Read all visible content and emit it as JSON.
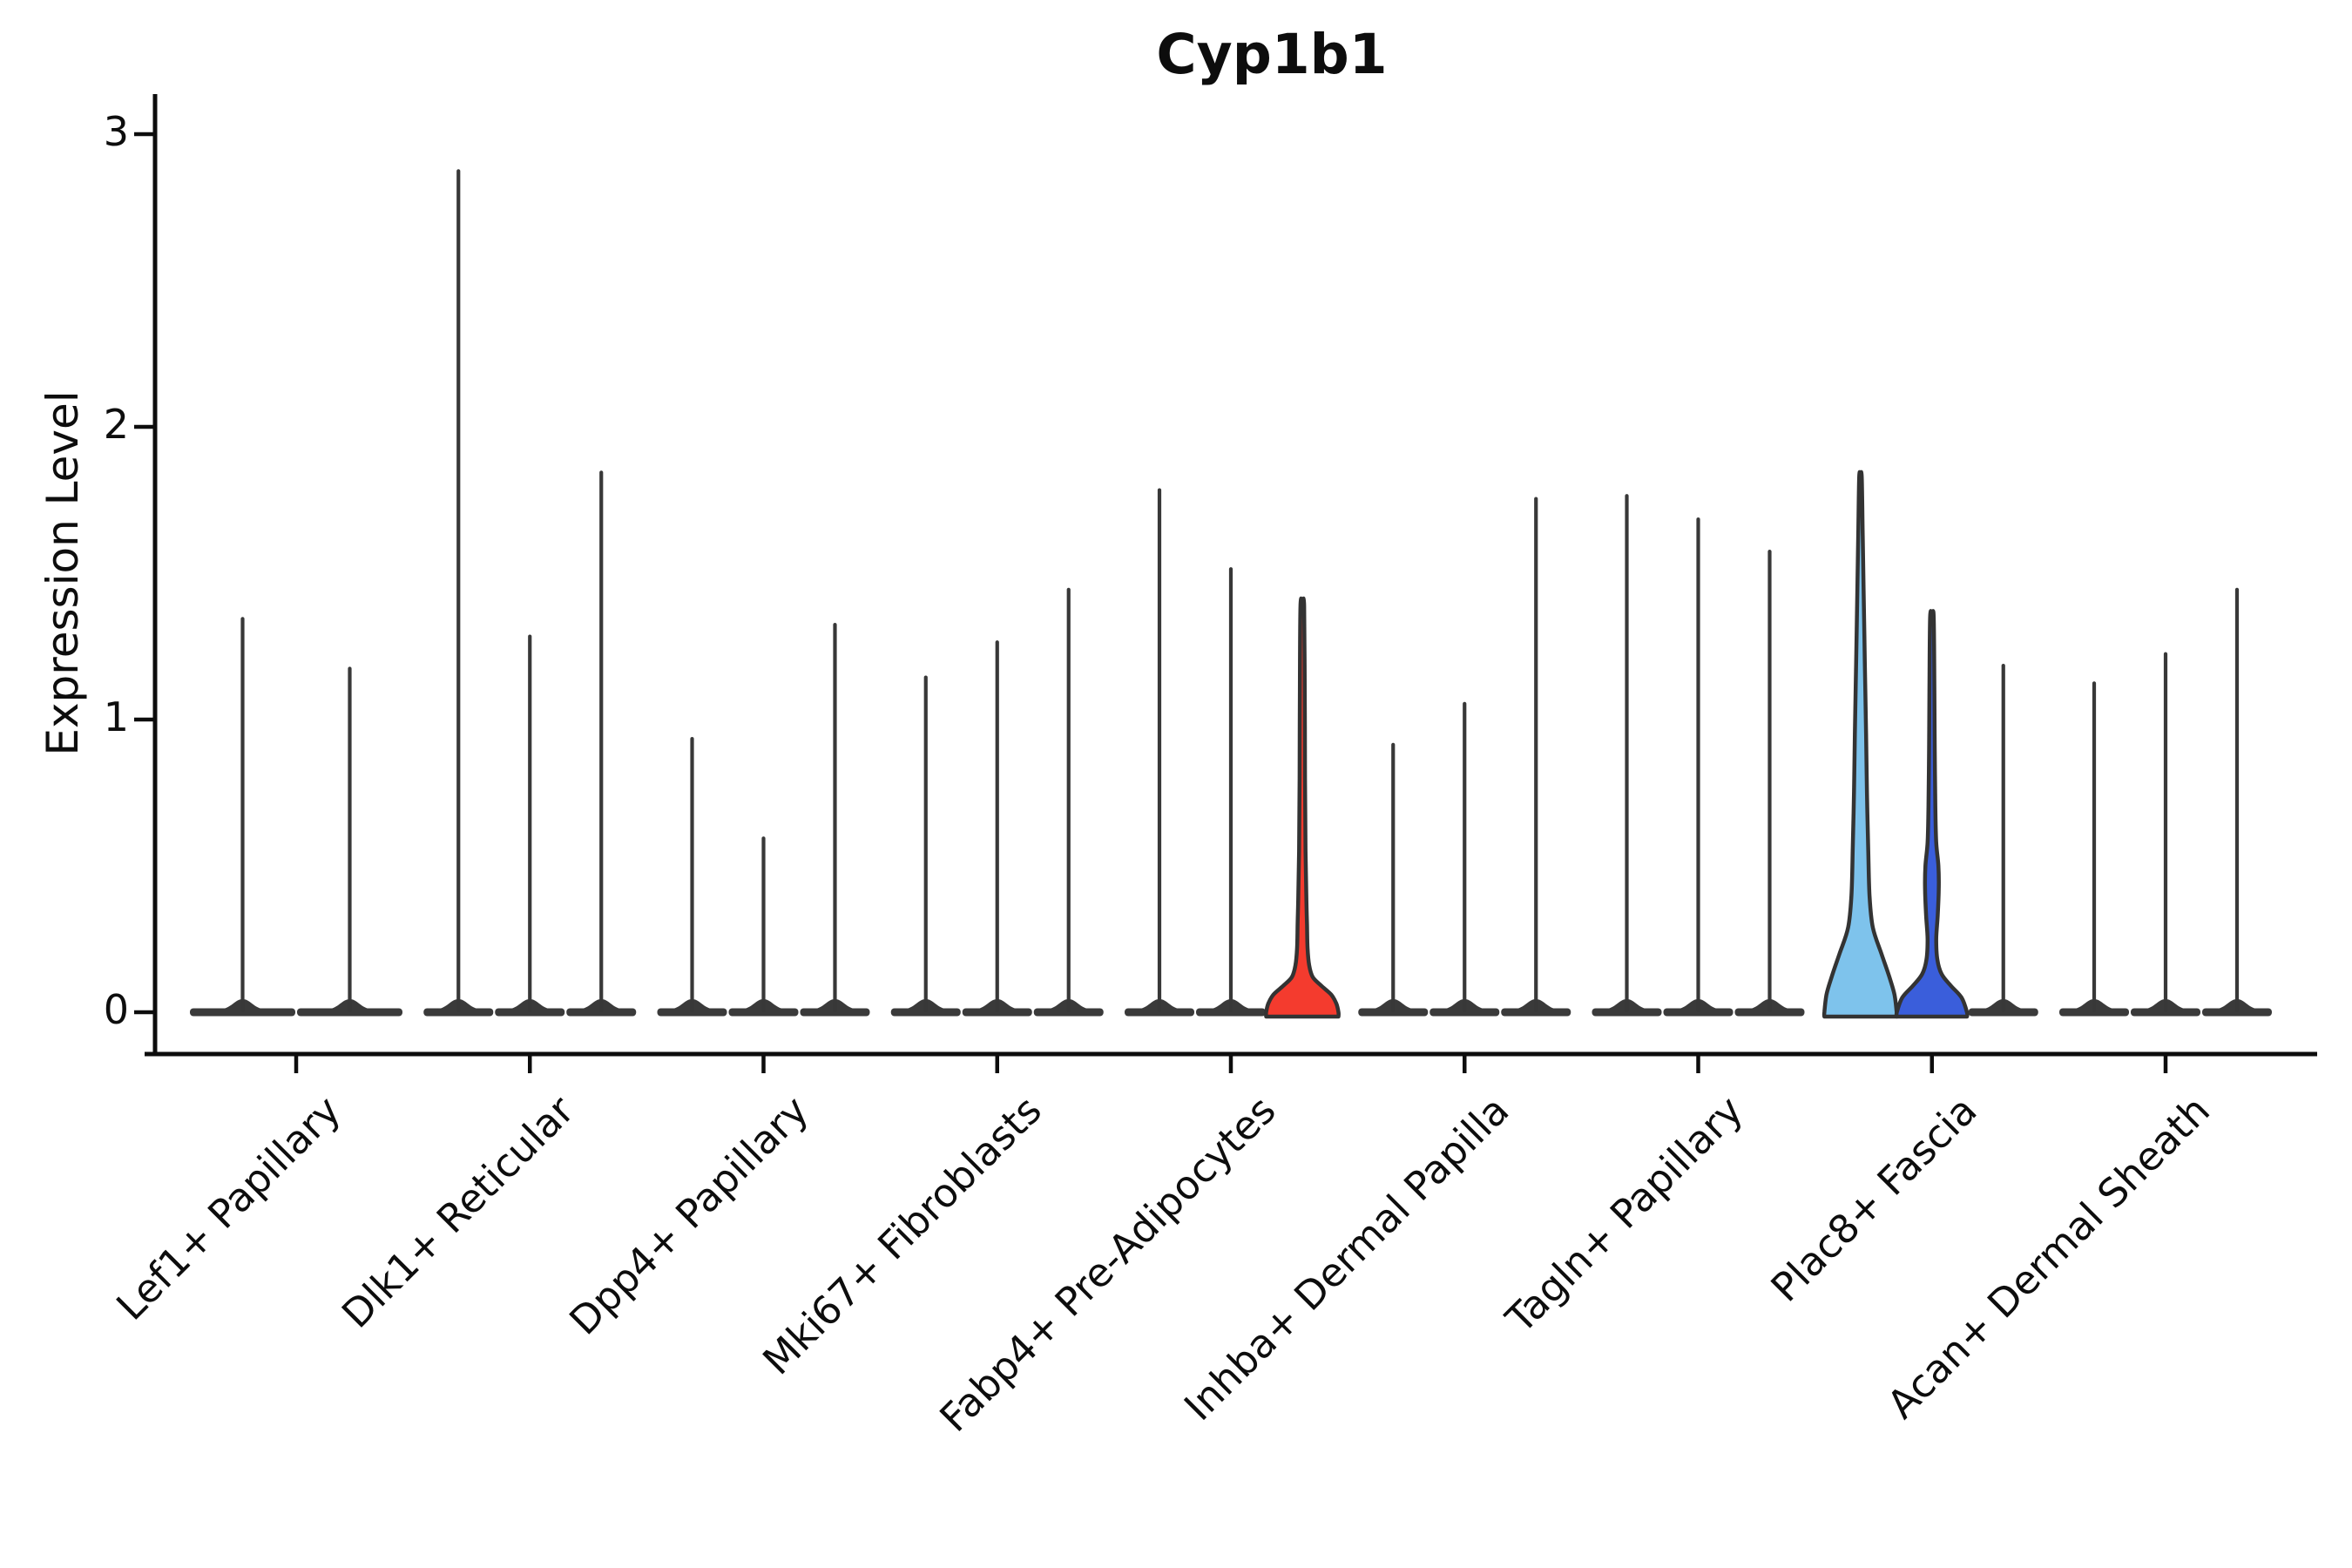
{
  "title": "Cyp1b1",
  "y_axis": {
    "label": "Expression Level",
    "tick_labels": [
      "0",
      "1",
      "2",
      "3"
    ]
  },
  "chart_data": {
    "type": "violin",
    "title": "Cyp1b1",
    "xlabel": "",
    "ylabel": "Expression Level",
    "ylim": [
      -0.15,
      3.15
    ],
    "yticks": [
      0,
      1,
      2,
      3
    ],
    "grid": false,
    "legend": false,
    "x_tick_rotation": 45,
    "categories": [
      "Lef1+ Papillary",
      "Dlk1+ Reticular",
      "Dpp4+ Papillary",
      "Mki67+ Fibroblasts",
      "Fabp4+ Pre-Adipocytes",
      "Inhba+ Dermal Papilla",
      "Tagln+ Papillary",
      "Plac8+ Fascia",
      "Acan+ Dermal Sheath"
    ],
    "groups": [
      {
        "category": "Lef1+ Papillary",
        "violins": [
          {
            "offset": -0.25,
            "max": 1.35,
            "style": "spike"
          },
          {
            "offset": 0.25,
            "max": 1.18,
            "style": "spike"
          }
        ]
      },
      {
        "category": "Dlk1+ Reticular",
        "violins": [
          {
            "offset": -0.3333,
            "max": 2.88,
            "style": "spike"
          },
          {
            "offset": 0,
            "max": 1.29,
            "style": "spike"
          },
          {
            "offset": 0.3333,
            "max": 1.85,
            "style": "spike"
          }
        ]
      },
      {
        "category": "Dpp4+ Papillary",
        "violins": [
          {
            "offset": -0.3333,
            "max": 0.94,
            "style": "spike"
          },
          {
            "offset": 0,
            "max": 0.6,
            "style": "spike"
          },
          {
            "offset": 0.3333,
            "max": 1.33,
            "style": "spike"
          }
        ]
      },
      {
        "category": "Mki67+ Fibroblasts",
        "violins": [
          {
            "offset": -0.3333,
            "max": 1.15,
            "style": "spike"
          },
          {
            "offset": 0,
            "max": 1.27,
            "style": "spike"
          },
          {
            "offset": 0.3333,
            "max": 1.45,
            "style": "spike"
          }
        ]
      },
      {
        "category": "Fabp4+ Pre-Adipocytes",
        "violins": [
          {
            "offset": -0.3333,
            "max": 1.79,
            "style": "spike"
          },
          {
            "offset": 0,
            "max": 1.52,
            "style": "spike"
          },
          {
            "offset": 0.3333,
            "max": 1.39,
            "style": "shaped",
            "fill": "red",
            "profile": [
              [
                0,
                1
              ],
              [
                0.03,
                0.94
              ],
              [
                0.06,
                0.8
              ],
              [
                0.09,
                0.53
              ],
              [
                0.12,
                0.29
              ],
              [
                0.16,
                0.19
              ],
              [
                0.22,
                0.145
              ],
              [
                0.3,
                0.13
              ],
              [
                0.4,
                0.11
              ],
              [
                0.55,
                0.09
              ],
              [
                0.8,
                0.075
              ],
              [
                1.1,
                0.068
              ],
              [
                1.39,
                0.05
              ]
            ]
          }
        ]
      },
      {
        "category": "Inhba+ Dermal Papilla",
        "violins": [
          {
            "offset": -0.3333,
            "max": 0.92,
            "style": "spike"
          },
          {
            "offset": 0,
            "max": 1.06,
            "style": "spike"
          },
          {
            "offset": 0.3333,
            "max": 1.76,
            "style": "spike"
          }
        ]
      },
      {
        "category": "Tagln+ Papillary",
        "violins": [
          {
            "offset": -0.3333,
            "max": 1.77,
            "style": "spike"
          },
          {
            "offset": 0,
            "max": 1.69,
            "style": "spike"
          },
          {
            "offset": 0.3333,
            "max": 1.58,
            "style": "spike"
          }
        ]
      },
      {
        "category": "Plac8+ Fascia",
        "violins": [
          {
            "offset": -0.3333,
            "max": 1.83,
            "style": "shaped",
            "fill": "light_blue",
            "profile": [
              [
                0,
                1
              ],
              [
                0.06,
                0.94
              ],
              [
                0.12,
                0.8
              ],
              [
                0.2,
                0.58
              ],
              [
                0.29,
                0.34
              ],
              [
                0.4,
                0.25
              ],
              [
                0.55,
                0.215
              ],
              [
                0.75,
                0.18
              ],
              [
                0.95,
                0.155
              ],
              [
                1.2,
                0.12
              ],
              [
                1.45,
                0.085
              ],
              [
                1.65,
                0.06
              ],
              [
                1.83,
                0.035
              ]
            ]
          },
          {
            "offset": 0,
            "max": 1.35,
            "style": "shaped",
            "fill": "dark_blue",
            "profile": [
              [
                0,
                0.97
              ],
              [
                0.05,
                0.82
              ],
              [
                0.09,
                0.53
              ],
              [
                0.13,
                0.27
              ],
              [
                0.18,
                0.15
              ],
              [
                0.25,
                0.12
              ],
              [
                0.33,
                0.16
              ],
              [
                0.42,
                0.19
              ],
              [
                0.5,
                0.18
              ],
              [
                0.58,
                0.12
              ],
              [
                0.7,
                0.095
              ],
              [
                0.9,
                0.078
              ],
              [
                1.1,
                0.068
              ],
              [
                1.35,
                0.05
              ]
            ]
          },
          {
            "offset": 0.3333,
            "max": 1.19,
            "style": "spike"
          }
        ]
      },
      {
        "category": "Acan+ Dermal Sheath",
        "violins": [
          {
            "offset": -0.3333,
            "max": 1.13,
            "style": "spike"
          },
          {
            "offset": 0,
            "max": 1.23,
            "style": "spike"
          },
          {
            "offset": 0.3333,
            "max": 1.45,
            "style": "spike"
          }
        ]
      }
    ],
    "colors": {
      "red": "#f43b2e",
      "light_blue": "#7ec3ec",
      "dark_blue": "#3a5edb",
      "outline": "#333333",
      "baseline": "#3a3a3a",
      "spike": "#383838",
      "spine": "#0d0d0d",
      "text": "#0d0d0d"
    }
  }
}
